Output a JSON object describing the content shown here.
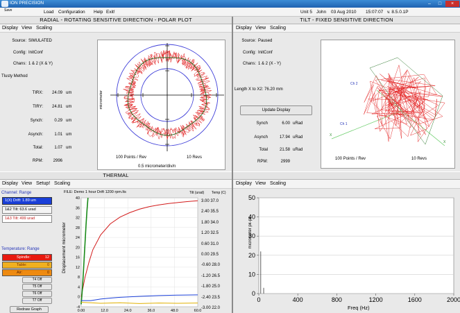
{
  "titlebar": {
    "title": "ION PRECISION"
  },
  "menu": {
    "file": "Save",
    "items": [
      "Load",
      "Configuration",
      "Help",
      "Exit!"
    ],
    "status": {
      "unit": "Unit 5",
      "user": "John",
      "date": "03 Aug 2010",
      "time": "15:07:07",
      "version": "v. 8.5.0.1P"
    }
  },
  "radial": {
    "header": "RADIAL - ROTATING SENSITIVE DIRECTION - POLAR PLOT",
    "menu": [
      "Display",
      "View",
      "Scaling"
    ],
    "source_label": "Source:",
    "source": "SIMULATED",
    "config_label": "Config:",
    "config": "InitConf",
    "chans_label": "Chans:",
    "chans": "1 & 2 (X & Y)",
    "method": "Tlusty Method",
    "rows": [
      {
        "label": "TIRX:",
        "value": "24.09",
        "unit": "um"
      },
      {
        "label": "TIRY:",
        "value": "24.81",
        "unit": "um"
      },
      {
        "label": "Synch:",
        "value": "0.29",
        "unit": "um"
      },
      {
        "label": "Asynch:",
        "value": "1.01",
        "unit": "um"
      },
      {
        "label": "Total:",
        "value": "1.07",
        "unit": "um"
      },
      {
        "label": "RPM:",
        "value": "2996",
        "unit": ""
      }
    ],
    "plot": {
      "ylabel": "micrometer",
      "points": "100 Points / Rev",
      "revs": "10 Revs",
      "scale": "0.5 micrometer/div/n"
    }
  },
  "tilt": {
    "header": "TILT - FIXED SENSITIVE DIRECTION",
    "menu": [
      "Display",
      "View",
      "Scaling"
    ],
    "source_label": "Source:",
    "source": "Paused",
    "config_label": "Config:",
    "config": "InitConf",
    "chans_label": "Chans:",
    "chans": "1 & 2 (X - Y)",
    "length": "Length X to X2: 76.20 mm",
    "update_button": "Update Display",
    "rows": [
      {
        "label": "Synch",
        "value": "6.00",
        "unit": "uRad"
      },
      {
        "label": "Asynch",
        "value": "17.94",
        "unit": "uRad"
      },
      {
        "label": "Total",
        "value": "21.58",
        "unit": "uRad"
      },
      {
        "label": "RPM:",
        "value": "2999",
        "unit": ""
      }
    ],
    "plot": {
      "ch1": "Ch 1",
      "ch2": "Ch 2",
      "x1": "X",
      "x2": "X",
      "points": "100 Points / Rev",
      "revs": "10 Revs"
    }
  },
  "thermal": {
    "header": "THERMAL",
    "menu": [
      "Display",
      "View",
      "Setup!",
      "Scaling"
    ],
    "file": "FILE: Demo 1 hour Drift 1200 rpm.lts",
    "channel_title": "Channel: Range",
    "channels": [
      {
        "label": "1(X) Drift: 1.89 um",
        "color": "#1a3fd8"
      },
      {
        "label": "1&2 Tilt: 63.6 urad",
        "color": "#2a7a2a"
      },
      {
        "label": "1&3 Tilt: 499 urad",
        "color": "#d21a1a"
      }
    ],
    "temp_title": "Temperature: Range",
    "temps": [
      {
        "label": "Spindle:",
        "value": "12",
        "bg": "#e8190e"
      },
      {
        "label": "Table:",
        "value": "0",
        "bg": "#f0b020"
      },
      {
        "label": "Air:",
        "value": "0",
        "bg": "#ee8a10"
      }
    ],
    "offs": [
      "T4 Off",
      "T5 Off",
      "T6 Off",
      "T7 Off"
    ],
    "redraw": "Redraw Graph",
    "ylabel": "Displacement micrometer",
    "tilt_hdr": "Tilt (urad)",
    "temp_hdr": "Temp (C)",
    "right_axis": [
      "3.00 37.0",
      "2.40 35.5",
      "1.80 34.0",
      "1.20 32.5",
      "0.60 31.0",
      "0.00 29.5",
      "-0.60 28.0",
      "-1.20 26.5",
      "-1.80 25.0",
      "-2.40 23.5",
      "-3.00 22.0"
    ]
  },
  "spectrum": {
    "menu": [
      "Display",
      "View",
      "Scaling"
    ],
    "ylabel": "micrometer pk-pk",
    "xlabel": "Freq (Hz)"
  },
  "chart_data": [
    {
      "type": "line",
      "title": "",
      "xlabel": "",
      "ylabel": "Displacement micrometer",
      "xlim": [
        0,
        60
      ],
      "ylim": [
        -4,
        40
      ],
      "x_ticks": [
        "0.00",
        "12.0",
        "24.0",
        "36.0",
        "48.0",
        "60.0"
      ],
      "y_ticks": [
        "40",
        "36",
        "32",
        "28",
        "24",
        "20",
        "16",
        "12",
        "8",
        "4",
        "0",
        "-4"
      ],
      "series": [
        {
          "color": "#d21a1a",
          "x": [
            0,
            2,
            4,
            6,
            10,
            15,
            20,
            25,
            30,
            35,
            40,
            45,
            50,
            55,
            60
          ],
          "y": [
            0,
            8,
            14,
            19,
            25,
            29.5,
            32.2,
            34,
            35.4,
            36.4,
            37.1,
            37.7,
            38.1,
            38.5,
            38.8
          ]
        },
        {
          "color": "#1a8a1a",
          "x": [
            0,
            0.5,
            1,
            1.5,
            2,
            2.5,
            3,
            3.5
          ],
          "y": [
            -3,
            2,
            8,
            15,
            22,
            29,
            35,
            40
          ]
        },
        {
          "color": "#1a3fd8",
          "x": [
            0,
            5,
            10,
            15,
            20,
            30,
            40,
            50,
            60
          ],
          "y": [
            -1.5,
            -1.5,
            -0.9,
            -0.5,
            -0.2,
            0.2,
            0.5,
            0.7,
            0.8
          ]
        },
        {
          "color": "#e0b000",
          "x": [
            0,
            5,
            10,
            20,
            30,
            40,
            50,
            60
          ],
          "y": [
            -2.2,
            -2.4,
            -2.6,
            -2.4,
            -2.7,
            -2.5,
            -2.6,
            -2.5
          ]
        }
      ]
    },
    {
      "type": "bar",
      "title": "",
      "xlabel": "Freq (Hz)",
      "ylabel": "micrometer pk-pk",
      "xlim": [
        0,
        2000
      ],
      "ylim": [
        0,
        50
      ],
      "x_ticks": [
        "0",
        "400",
        "800",
        "1200",
        "1600",
        "2000"
      ],
      "y_ticks": [
        "50",
        "40",
        "30",
        "20",
        "10",
        "0"
      ],
      "x": [
        20,
        50
      ],
      "values": [
        22,
        3
      ]
    }
  ]
}
